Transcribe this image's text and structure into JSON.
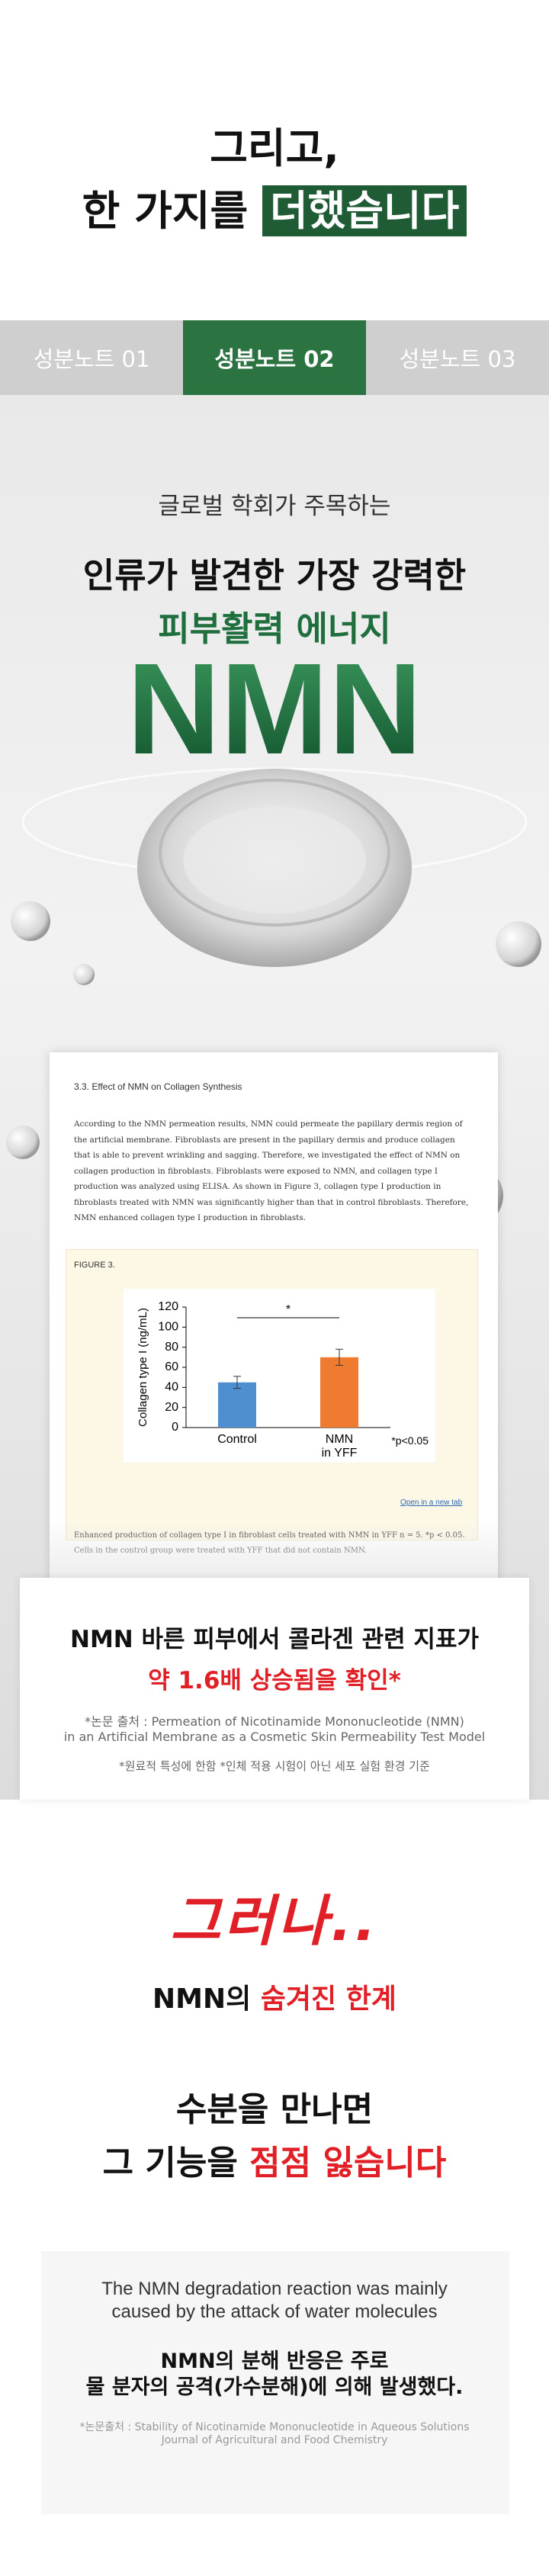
{
  "intro": {
    "line1": "그리고,",
    "line2_lead": "한 가지를 ",
    "line2_highlight": "더했습니다"
  },
  "tabs": [
    "성분노트 01",
    "성분노트 02",
    "성분노트 03"
  ],
  "hero": {
    "eyebrow": "글로벌 학회가 주목하는",
    "title": "인류가 발견한 가장 강력한",
    "subtitle": "피부활력 에너지",
    "brand": "NMN"
  },
  "paper": {
    "heading": "3.3. Effect of NMN on Collagen Synthesis",
    "body": [
      "According to the NMN permeation results, NMN could permeate the papillary dermis region of",
      "the artificial membrane. Fibroblasts are present in the papillary dermis and produce collagen",
      "that is able to prevent wrinkling and sagging. Therefore, we investigated the effect of NMN on",
      "collagen production in fibroblasts. Fibroblasts were exposed to NMN, and collagen type I",
      "production was analyzed using ELISA. As shown in Figure 3, collagen type I production in",
      "fibroblasts treated with NMN was significantly higher than that in control fibroblasts. Therefore,",
      "NMN enhanced collagen type I production in fibroblasts."
    ],
    "figure_label": "FIGURE 3.",
    "chart": {
      "type": "bar",
      "y_label": "Collagen type I (ng/mL)",
      "categories": [
        [
          "Control"
        ],
        [
          "NMN",
          "in YFF"
        ]
      ],
      "values": [
        45,
        70
      ],
      "errors": [
        6,
        8
      ],
      "color": [
        "#4f8fd0",
        "#ee7b30"
      ],
      "ylim": [
        0,
        120
      ],
      "yticks": [
        0,
        20,
        40,
        60,
        80,
        100,
        120
      ],
      "significance": "*",
      "note": "*p<0.05"
    },
    "link": "Open in a new tab",
    "caption": [
      "Enhanced production of collagen type I in fibroblast cells treated with NMN in YFF n = 5. *p < 0.05.",
      "Cells in the control group were treated with YFF that did not contain NMN."
    ]
  },
  "result": {
    "line1": "NMN 바른 피부에서 콜라겐 관련 지표가",
    "line2": "약 1.6배 상승됨을 확인*",
    "source1": "*논문 출처 : Permeation of Nicotinamide Mononucleotide (NMN)",
    "source2": "in an Artificial Membrane as a Cosmetic Skin Permeability Test Model",
    "note": "*원료적 특성에 한함 *인체 적용 시험이 아닌 세포 실험 환경 기준"
  },
  "limit": {
    "however": "그러나..",
    "title_lead": "NMN의 ",
    "title_red": "숨겨진 한계",
    "line1": "수분을 만나면",
    "line2_lead": "그 기능을 ",
    "line2_red": "점점 잃습니다"
  },
  "quote": {
    "en1": "The NMN degradation reaction was mainly",
    "en2": "caused by the attack of water molecules",
    "ko1": "NMN의 분해 반응은 주로",
    "ko2": "물 분자의 공격(가수분해)에 의해 발생했다.",
    "source1": "*논문출처 : Stability of Nicotinamide Mononucleotide in Aqueous Solutions",
    "source2": "Journal of Agricultural and Food Chemistry"
  }
}
